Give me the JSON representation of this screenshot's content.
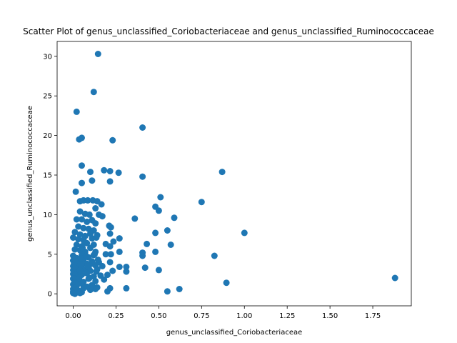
{
  "chart_data": {
    "type": "scatter",
    "title": "Scatter Plot of genus_unclassified_Coriobacteriaceae and genus_unclassified_Ruminococcaceae",
    "xlabel": "genus_unclassified_Coriobacteriaceae",
    "ylabel": "genus_unclassified_Ruminococcaceae",
    "xlim": [
      -0.094,
      1.975
    ],
    "ylim": [
      -1.52,
      31.88
    ],
    "xticks": [
      0.0,
      0.25,
      0.5,
      0.75,
      1.0,
      1.25,
      1.5,
      1.75
    ],
    "xtick_labels": [
      "0.00",
      "0.25",
      "0.50",
      "0.75",
      "1.00",
      "1.25",
      "1.50",
      "1.75"
    ],
    "yticks": [
      0,
      5,
      10,
      15,
      20,
      25,
      30
    ],
    "ytick_labels": [
      "0",
      "5",
      "10",
      "15",
      "20",
      "25",
      "30"
    ],
    "grid": false,
    "color": "#1f77b4",
    "points": [
      [
        0.145,
        30.3
      ],
      [
        0.12,
        25.5
      ],
      [
        0.02,
        23.0
      ],
      [
        0.405,
        21.0
      ],
      [
        0.05,
        19.7
      ],
      [
        0.035,
        19.5
      ],
      [
        0.23,
        19.4
      ],
      [
        0.05,
        16.2
      ],
      [
        0.18,
        15.6
      ],
      [
        0.215,
        15.5
      ],
      [
        0.1,
        15.4
      ],
      [
        0.265,
        15.3
      ],
      [
        0.87,
        15.4
      ],
      [
        0.405,
        14.8
      ],
      [
        0.11,
        14.3
      ],
      [
        0.215,
        14.2
      ],
      [
        0.05,
        14.0
      ],
      [
        0.015,
        12.9
      ],
      [
        0.51,
        12.2
      ],
      [
        0.04,
        11.7
      ],
      [
        0.06,
        11.8
      ],
      [
        0.085,
        11.8
      ],
      [
        0.115,
        11.8
      ],
      [
        0.14,
        11.7
      ],
      [
        0.75,
        11.6
      ],
      [
        0.165,
        11.3
      ],
      [
        0.48,
        11.0
      ],
      [
        0.13,
        10.8
      ],
      [
        0.04,
        10.4
      ],
      [
        0.07,
        10.1
      ],
      [
        0.095,
        10.0
      ],
      [
        0.15,
        10.0
      ],
      [
        0.17,
        9.8
      ],
      [
        0.5,
        10.5
      ],
      [
        0.36,
        9.5
      ],
      [
        0.59,
        9.6
      ],
      [
        0.02,
        9.4
      ],
      [
        0.05,
        9.4
      ],
      [
        0.08,
        9.1
      ],
      [
        0.11,
        9.3
      ],
      [
        0.13,
        8.9
      ],
      [
        0.21,
        8.6
      ],
      [
        0.22,
        8.4
      ],
      [
        0.03,
        8.5
      ],
      [
        0.06,
        8.3
      ],
      [
        0.09,
        8.2
      ],
      [
        0.12,
        8.0
      ],
      [
        0.55,
        8.0
      ],
      [
        0.01,
        7.8
      ],
      [
        0.04,
        7.5
      ],
      [
        0.07,
        7.3
      ],
      [
        0.1,
        7.6
      ],
      [
        0.14,
        7.4
      ],
      [
        0.215,
        7.6
      ],
      [
        1.0,
        7.7
      ],
      [
        0.48,
        7.7
      ],
      [
        0.0,
        7.1
      ],
      [
        0.03,
        6.9
      ],
      [
        0.06,
        6.8
      ],
      [
        0.11,
        7.0
      ],
      [
        0.135,
        7.1
      ],
      [
        0.27,
        7.0
      ],
      [
        0.235,
        6.6
      ],
      [
        0.02,
        6.2
      ],
      [
        0.05,
        6.0
      ],
      [
        0.08,
        6.4
      ],
      [
        0.12,
        6.2
      ],
      [
        0.19,
        6.3
      ],
      [
        0.215,
        6.0
      ],
      [
        0.43,
        6.3
      ],
      [
        0.57,
        6.2
      ],
      [
        0.01,
        5.6
      ],
      [
        0.04,
        5.5
      ],
      [
        0.07,
        5.3
      ],
      [
        0.1,
        5.8
      ],
      [
        0.13,
        5.3
      ],
      [
        0.27,
        5.3
      ],
      [
        0.48,
        5.3
      ],
      [
        0.825,
        4.8
      ],
      [
        0.0,
        4.8
      ],
      [
        0.02,
        4.5
      ],
      [
        0.05,
        4.9
      ],
      [
        0.09,
        4.6
      ],
      [
        0.12,
        4.9
      ],
      [
        0.19,
        5.0
      ],
      [
        0.22,
        5.0
      ],
      [
        0.405,
        5.2
      ],
      [
        0.405,
        4.8
      ],
      [
        0.0,
        4.2
      ],
      [
        0.03,
        4.0
      ],
      [
        0.06,
        4.3
      ],
      [
        0.08,
        3.8
      ],
      [
        0.11,
        4.1
      ],
      [
        0.15,
        4.0
      ],
      [
        0.215,
        4.0
      ],
      [
        0.0,
        3.5
      ],
      [
        0.02,
        3.4
      ],
      [
        0.05,
        3.7
      ],
      [
        0.09,
        3.3
      ],
      [
        0.13,
        3.6
      ],
      [
        0.17,
        3.5
      ],
      [
        0.27,
        3.4
      ],
      [
        0.31,
        3.4
      ],
      [
        0.42,
        3.3
      ],
      [
        0.0,
        3.0
      ],
      [
        0.03,
        2.8
      ],
      [
        0.06,
        3.1
      ],
      [
        0.1,
        2.9
      ],
      [
        0.14,
        3.1
      ],
      [
        0.23,
        2.9
      ],
      [
        0.31,
        2.8
      ],
      [
        0.5,
        3.0
      ],
      [
        0.0,
        2.5
      ],
      [
        0.02,
        2.2
      ],
      [
        0.05,
        2.4
      ],
      [
        0.08,
        2.6
      ],
      [
        0.12,
        2.2
      ],
      [
        0.16,
        2.3
      ],
      [
        0.2,
        2.4
      ],
      [
        1.88,
        2.0
      ],
      [
        0.0,
        1.9
      ],
      [
        0.03,
        1.7
      ],
      [
        0.06,
        1.5
      ],
      [
        0.09,
        1.9
      ],
      [
        0.13,
        1.6
      ],
      [
        0.18,
        1.8
      ],
      [
        0.895,
        1.4
      ],
      [
        0.0,
        1.2
      ],
      [
        0.02,
        1.0
      ],
      [
        0.05,
        1.3
      ],
      [
        0.08,
        0.9
      ],
      [
        0.11,
        1.1
      ],
      [
        0.14,
        0.8
      ],
      [
        0.0,
        0.6
      ],
      [
        0.03,
        0.4
      ],
      [
        0.06,
        0.7
      ],
      [
        0.1,
        0.5
      ],
      [
        0.13,
        0.6
      ],
      [
        0.215,
        0.7
      ],
      [
        0.31,
        0.7
      ],
      [
        0.62,
        0.6
      ],
      [
        0.0,
        0.1
      ],
      [
        0.02,
        0.2
      ],
      [
        0.05,
        0.2
      ],
      [
        0.2,
        0.3
      ],
      [
        0.55,
        0.3
      ],
      [
        0.01,
        0.0
      ],
      [
        0.04,
        0.1
      ],
      [
        0.0,
        0.3
      ],
      [
        0.01,
        1.5
      ],
      [
        0.015,
        2.1
      ],
      [
        0.005,
        2.7
      ],
      [
        0.015,
        3.2
      ],
      [
        0.005,
        3.8
      ],
      [
        0.01,
        4.4
      ],
      [
        0.015,
        0.8
      ],
      [
        0.03,
        1.3
      ],
      [
        0.035,
        2.0
      ],
      [
        0.04,
        3.0
      ],
      [
        0.045,
        4.5
      ],
      [
        0.055,
        5.8
      ],
      [
        0.065,
        6.5
      ],
      [
        0.075,
        4.8
      ],
      [
        0.085,
        3.5
      ],
      [
        0.095,
        2.0
      ],
      [
        0.105,
        1.0
      ],
      [
        0.115,
        3.8
      ],
      [
        0.125,
        5.0
      ],
      [
        0.135,
        2.8
      ],
      [
        0.145,
        4.3
      ]
    ]
  }
}
